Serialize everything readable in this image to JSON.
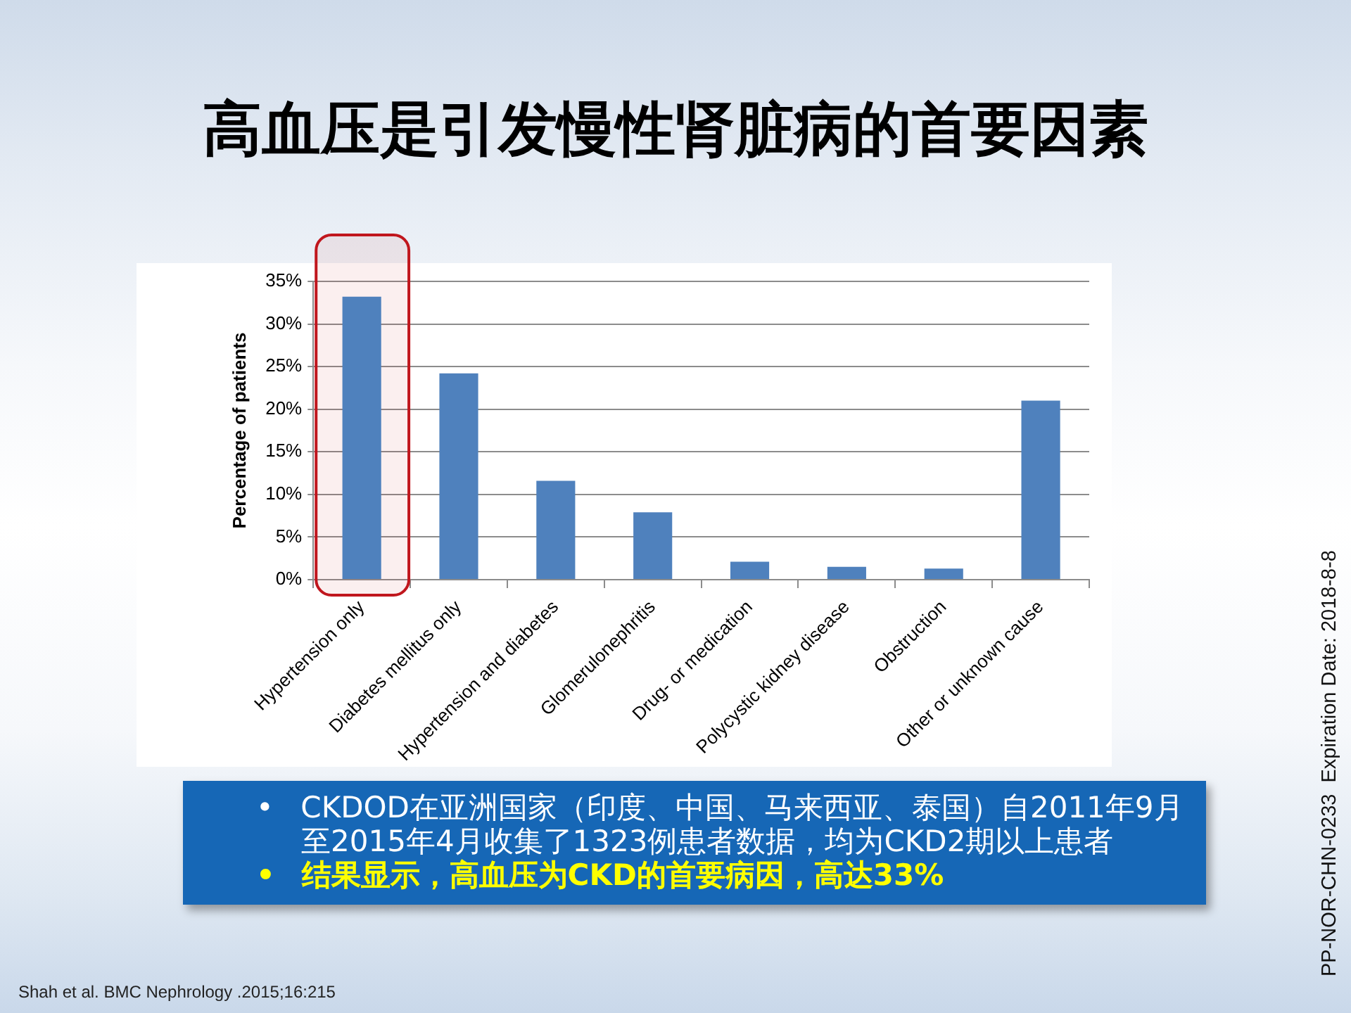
{
  "chart_data": {
    "type": "bar",
    "title": "高血压是引发慢性肾脏病的首要因素",
    "ylabel": "Percentage of patients",
    "categories": [
      "Hypertension only",
      "Diabetes mellitus only",
      "Hypertension and diabetes",
      "Glomerulonephritis",
      "Drug- or medication",
      "Polycystic kidney disease",
      "Obstruction",
      "Other or unknown cause"
    ],
    "values": [
      33.2,
      24.2,
      11.6,
      7.9,
      2.1,
      1.5,
      1.3,
      21.0
    ],
    "color": "#4f81bd",
    "ylim": [
      0,
      35
    ],
    "yticks": [
      {
        "value": 0,
        "label": "0%"
      },
      {
        "value": 5,
        "label": "5%"
      },
      {
        "value": 10,
        "label": "10%"
      },
      {
        "value": 15,
        "label": "15%"
      },
      {
        "value": 20,
        "label": "20%"
      },
      {
        "value": 25,
        "label": "25%"
      },
      {
        "value": 30,
        "label": "30%"
      },
      {
        "value": 35,
        "label": "35%"
      }
    ],
    "grid": "y",
    "bands": [
      {
        "axis": "x",
        "from": "Hypertension only",
        "to": "Hypertension only",
        "color": "#c0161d"
      }
    ],
    "annotations": [
      "• CKDOD在亚洲国家（印度、中国、马来西亚、泰国）自2011年9月至2015年4月收集了1323例患者数据，均为CKD2期以上患者",
      "• 结果显示，高血压为CKD的首要病因，高达33%",
      "Shah et al. BMC Nephrology .2015;16:215",
      "PP-NOR-CHN-0233  Expiration Date: 2018-8-8"
    ]
  }
}
